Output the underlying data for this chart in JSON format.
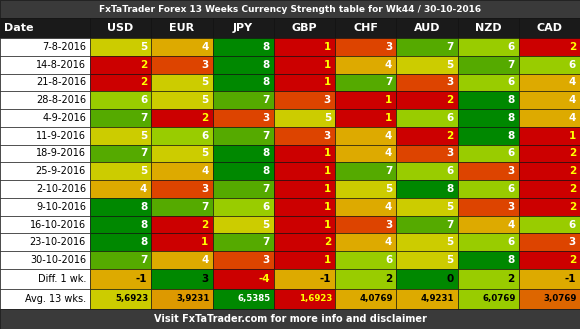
{
  "title": "FxTaTrader Forex 13 Weeks Currency Strength table for Wk44 / 30-10-2016",
  "footer": "Visit FxTaTrader.com for more info and disclaimer",
  "columns": [
    "Date",
    "USD",
    "EUR",
    "JPY",
    "GBP",
    "CHF",
    "AUD",
    "NZD",
    "CAD"
  ],
  "rows": [
    {
      "date": "7-8-2016",
      "USD": 5,
      "EUR": 4,
      "JPY": 8,
      "GBP": 1,
      "CHF": 3,
      "AUD": 7,
      "NZD": 6,
      "CAD": 2
    },
    {
      "date": "14-8-2016",
      "USD": 2,
      "EUR": 3,
      "JPY": 8,
      "GBP": 1,
      "CHF": 4,
      "AUD": 5,
      "NZD": 7,
      "CAD": 6
    },
    {
      "date": "21-8-2016",
      "USD": 2,
      "EUR": 5,
      "JPY": 8,
      "GBP": 1,
      "CHF": 7,
      "AUD": 3,
      "NZD": 6,
      "CAD": 4
    },
    {
      "date": "28-8-2016",
      "USD": 6,
      "EUR": 5,
      "JPY": 7,
      "GBP": 3,
      "CHF": 1,
      "AUD": 2,
      "NZD": 8,
      "CAD": 4
    },
    {
      "date": "4-9-2016",
      "USD": 7,
      "EUR": 2,
      "JPY": 3,
      "GBP": 5,
      "CHF": 1,
      "AUD": 6,
      "NZD": 8,
      "CAD": 4
    },
    {
      "date": "11-9-2016",
      "USD": 5,
      "EUR": 6,
      "JPY": 7,
      "GBP": 3,
      "CHF": 4,
      "AUD": 2,
      "NZD": 8,
      "CAD": 1
    },
    {
      "date": "18-9-2016",
      "USD": 7,
      "EUR": 5,
      "JPY": 8,
      "GBP": 1,
      "CHF": 4,
      "AUD": 3,
      "NZD": 6,
      "CAD": 2
    },
    {
      "date": "25-9-2016",
      "USD": 5,
      "EUR": 4,
      "JPY": 8,
      "GBP": 1,
      "CHF": 7,
      "AUD": 6,
      "NZD": 3,
      "CAD": 2
    },
    {
      "date": "2-10-2016",
      "USD": 4,
      "EUR": 3,
      "JPY": 7,
      "GBP": 1,
      "CHF": 5,
      "AUD": 8,
      "NZD": 6,
      "CAD": 2
    },
    {
      "date": "9-10-2016",
      "USD": 8,
      "EUR": 7,
      "JPY": 6,
      "GBP": 1,
      "CHF": 4,
      "AUD": 5,
      "NZD": 3,
      "CAD": 2
    },
    {
      "date": "16-10-2016",
      "USD": 8,
      "EUR": 2,
      "JPY": 5,
      "GBP": 1,
      "CHF": 3,
      "AUD": 7,
      "NZD": 4,
      "CAD": 6
    },
    {
      "date": "23-10-2016",
      "USD": 8,
      "EUR": 1,
      "JPY": 7,
      "GBP": 2,
      "CHF": 4,
      "AUD": 5,
      "NZD": 6,
      "CAD": 3
    },
    {
      "date": "30-10-2016",
      "USD": 7,
      "EUR": 4,
      "JPY": 3,
      "GBP": 1,
      "CHF": 6,
      "AUD": 5,
      "NZD": 8,
      "CAD": 2
    }
  ],
  "diff": {
    "USD": -1,
    "EUR": 3,
    "JPY": -4,
    "GBP": -1,
    "CHF": 2,
    "AUD": 0,
    "NZD": 2,
    "CAD": -1
  },
  "avg": {
    "USD": "5,6923",
    "EUR": "3,9231",
    "JPY": "6,5385",
    "GBP": "1,6923",
    "CHF": "4,0769",
    "AUD": "4,9231",
    "NZD": "6,0769",
    "CAD": "3,0769"
  },
  "title_bg": "#3a3a3a",
  "title_fg": "#ffffff",
  "header_bg": "#1a1a1a",
  "header_fg": "#ffffff",
  "footer_bg": "#3a3a3a",
  "footer_fg": "#ffffff",
  "date_bg": "#ffffff",
  "date_fg": "#000000",
  "color_map": {
    "1": "#cc0000",
    "2": "#cc0000",
    "3": "#dd4400",
    "4": "#ddaa00",
    "5": "#cccc00",
    "6": "#99cc00",
    "7": "#55aa00",
    "8": "#008800"
  },
  "text_color_map": {
    "1": "#ffff00",
    "2": "#ffff00",
    "3": "#ffffff",
    "4": "#ffffff",
    "5": "#ffffff",
    "6": "#ffffff",
    "7": "#ffffff",
    "8": "#ffffff"
  },
  "diff_colors": {
    "USD": {
      "bg": "#ddaa00",
      "fg": "#000000"
    },
    "EUR": {
      "bg": "#008800",
      "fg": "#000000"
    },
    "JPY": {
      "bg": "#cc0000",
      "fg": "#ffff00"
    },
    "GBP": {
      "bg": "#ddaa00",
      "fg": "#000000"
    },
    "CHF": {
      "bg": "#99cc00",
      "fg": "#000000"
    },
    "AUD": {
      "bg": "#008800",
      "fg": "#000000"
    },
    "NZD": {
      "bg": "#99cc00",
      "fg": "#000000"
    },
    "CAD": {
      "bg": "#ddaa00",
      "fg": "#000000"
    }
  },
  "avg_colors": {
    "USD": {
      "bg": "#cccc00",
      "fg": "#000000"
    },
    "EUR": {
      "bg": "#dd9900",
      "fg": "#000000"
    },
    "JPY": {
      "bg": "#008800",
      "fg": "#ffffff"
    },
    "GBP": {
      "bg": "#cc0000",
      "fg": "#ffff00"
    },
    "CHF": {
      "bg": "#ddaa00",
      "fg": "#000000"
    },
    "AUD": {
      "bg": "#ddaa00",
      "fg": "#000000"
    },
    "NZD": {
      "bg": "#99cc00",
      "fg": "#000000"
    },
    "CAD": {
      "bg": "#dd6600",
      "fg": "#000000"
    }
  }
}
